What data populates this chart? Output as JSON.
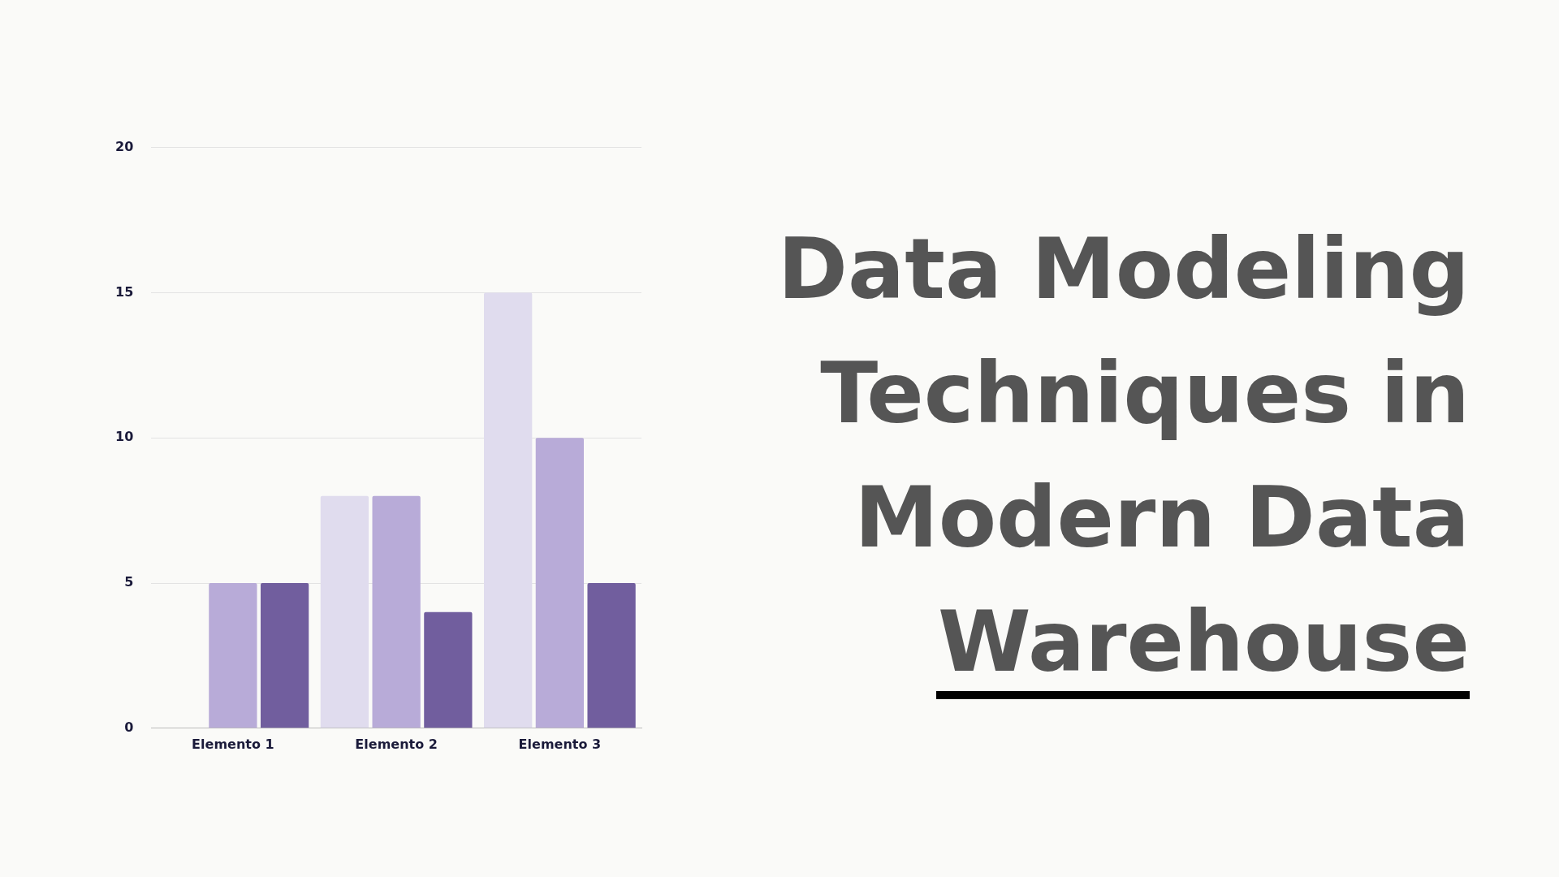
{
  "chart_data": {
    "type": "bar",
    "title": "Data Modeling Techniques in Modern Data Warehouse",
    "categories": [
      "Elemento 1",
      "Elemento 2",
      "Elemento 3"
    ],
    "series": [
      {
        "color": "#e0dcee",
        "values": [
          0,
          8,
          15
        ]
      },
      {
        "color": "#b8abd8",
        "values": [
          5,
          8,
          10
        ]
      },
      {
        "color": "#715e9e",
        "values": [
          5,
          4,
          5
        ]
      }
    ],
    "ylim": [
      0,
      20
    ],
    "yticks": [
      0,
      5,
      10,
      15,
      20
    ],
    "grid": "y",
    "legend": false
  }
}
